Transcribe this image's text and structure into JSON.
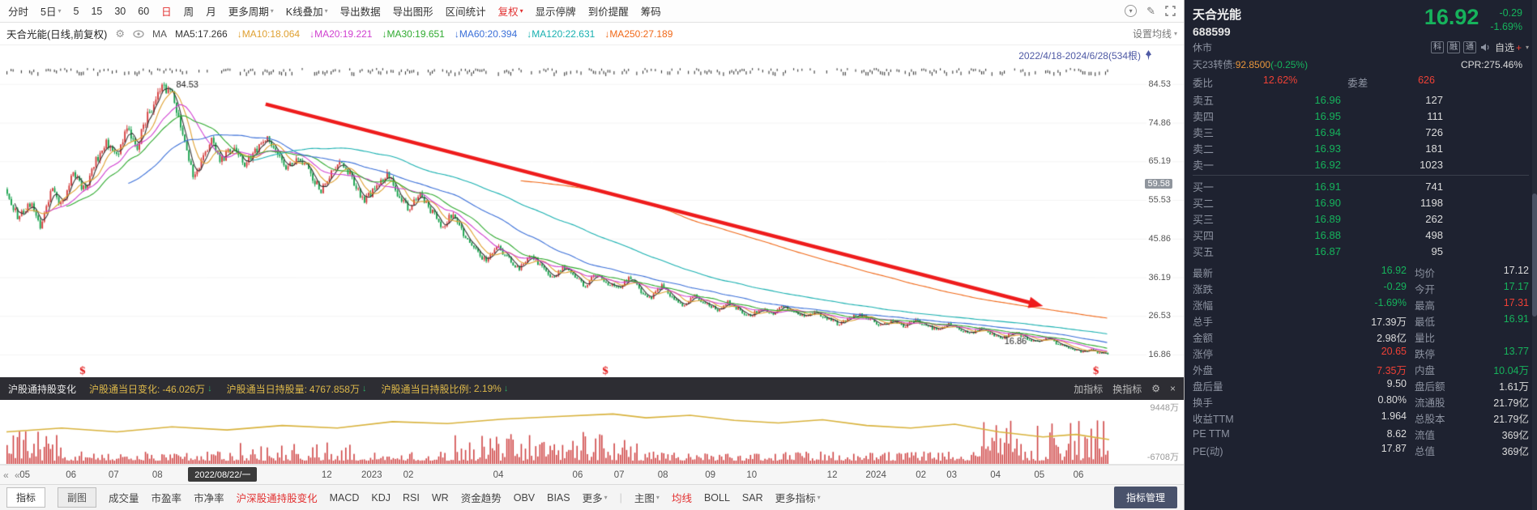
{
  "icons": {
    "caret": "▾",
    "down_arrow": "↓",
    "gear": "⚙",
    "edit": "✎",
    "close": "×",
    "back": "« «",
    "plus": "+",
    "event_marker": "$",
    "collapse": "▾"
  },
  "top_toolbar": {
    "items": [
      {
        "label": "分时"
      },
      {
        "label": "5日",
        "caret": true
      },
      {
        "label": "5"
      },
      {
        "label": "15"
      },
      {
        "label": "30"
      },
      {
        "label": "60"
      },
      {
        "label": "日",
        "active": true
      },
      {
        "label": "周"
      },
      {
        "label": "月"
      },
      {
        "label": "更多周期",
        "caret": true
      },
      {
        "label": "K线叠加",
        "caret": true
      },
      {
        "label": "导出数据"
      },
      {
        "label": "导出图形"
      },
      {
        "label": "区间统计"
      },
      {
        "label": "复权",
        "caret": true,
        "active": true
      },
      {
        "label": "显示停牌"
      },
      {
        "label": "到价提醒"
      },
      {
        "label": "筹码"
      }
    ]
  },
  "ma_bar": {
    "title": "天合光能(日线,前复权)",
    "ma_label": "MA",
    "items": [
      {
        "text": "MA5:17.266",
        "color": "#333333",
        "arrow": ""
      },
      {
        "text": "MA10:18.064",
        "color": "#dfa030",
        "arrow": "↓"
      },
      {
        "text": "MA20:19.221",
        "color": "#d040d0",
        "arrow": "↓"
      },
      {
        "text": "MA30:19.651",
        "color": "#2faa2f",
        "arrow": "↓"
      },
      {
        "text": "MA60:20.394",
        "color": "#3a6fd8",
        "arrow": "↓"
      },
      {
        "text": "MA120:22.631",
        "color": "#18b0b0",
        "arrow": "↓"
      },
      {
        "text": "MA250:27.189",
        "color": "#f06818",
        "arrow": "↓"
      }
    ],
    "settings": "设置均线"
  },
  "chart_overlay": {
    "range_label": "2022/4/18-2024/6/28(534根)"
  },
  "chart_data": [
    {
      "type": "candlestick",
      "title": "天合光能 日线 前复权",
      "date_range": "2022/4/18-2024/6/28",
      "bar_count": 534,
      "y_range": [
        11.2,
        94.2
      ],
      "y_ticks": [
        84.53,
        74.86,
        65.19,
        55.53,
        45.86,
        36.19,
        26.53,
        16.86
      ],
      "y_badge": 59.58,
      "up_color": "#d43c3c",
      "down_color": "#15a04a",
      "ma_periods": [
        5,
        10,
        20,
        30,
        60,
        120,
        250
      ],
      "ma_colors": [
        "#333333",
        "#dfa030",
        "#d040d0",
        "#2faa2f",
        "#3a6fd8",
        "#18b0b0",
        "#f06818"
      ],
      "peak_annotation": {
        "text": "84.53",
        "x": 0.148,
        "price": 84.53
      },
      "last_annotation": {
        "text": "16.86",
        "x": 0.905,
        "price": 19.6
      },
      "trend_arrow": {
        "x1": 0.235,
        "price1": 79.5,
        "x2": 0.94,
        "price2": 29.0,
        "color": "#ee1c1c"
      },
      "event_marker_xs": [
        0.066,
        0.54,
        0.985
      ],
      "close_anchors": [
        [
          0.0,
          57
        ],
        [
          0.01,
          51
        ],
        [
          0.022,
          55
        ],
        [
          0.03,
          49
        ],
        [
          0.04,
          58
        ],
        [
          0.05,
          54
        ],
        [
          0.06,
          62
        ],
        [
          0.07,
          58
        ],
        [
          0.08,
          65
        ],
        [
          0.09,
          70
        ],
        [
          0.1,
          66
        ],
        [
          0.108,
          73
        ],
        [
          0.118,
          69
        ],
        [
          0.128,
          77
        ],
        [
          0.14,
          83
        ],
        [
          0.148,
          84.3
        ],
        [
          0.155,
          76
        ],
        [
          0.163,
          68
        ],
        [
          0.17,
          61
        ],
        [
          0.178,
          66
        ],
        [
          0.186,
          71
        ],
        [
          0.194,
          65
        ],
        [
          0.205,
          69
        ],
        [
          0.215,
          64
        ],
        [
          0.225,
          68
        ],
        [
          0.235,
          71
        ],
        [
          0.245,
          67
        ],
        [
          0.255,
          63
        ],
        [
          0.265,
          67
        ],
        [
          0.275,
          62
        ],
        [
          0.285,
          58
        ],
        [
          0.295,
          62
        ],
        [
          0.305,
          65
        ],
        [
          0.315,
          60
        ],
        [
          0.325,
          55
        ],
        [
          0.335,
          59
        ],
        [
          0.345,
          62
        ],
        [
          0.355,
          57
        ],
        [
          0.365,
          53
        ],
        [
          0.375,
          57
        ],
        [
          0.385,
          53
        ],
        [
          0.395,
          49
        ],
        [
          0.405,
          52
        ],
        [
          0.415,
          47
        ],
        [
          0.425,
          43
        ],
        [
          0.435,
          40
        ],
        [
          0.445,
          44
        ],
        [
          0.455,
          41
        ],
        [
          0.465,
          38
        ],
        [
          0.475,
          42
        ],
        [
          0.485,
          39
        ],
        [
          0.495,
          36
        ],
        [
          0.505,
          39
        ],
        [
          0.515,
          37
        ],
        [
          0.525,
          34
        ],
        [
          0.535,
          37
        ],
        [
          0.545,
          35
        ],
        [
          0.555,
          33
        ],
        [
          0.565,
          36
        ],
        [
          0.575,
          33
        ],
        [
          0.585,
          31
        ],
        [
          0.595,
          34
        ],
        [
          0.605,
          31
        ],
        [
          0.615,
          29
        ],
        [
          0.625,
          31.5
        ],
        [
          0.635,
          29.5
        ],
        [
          0.645,
          28
        ],
        [
          0.655,
          30
        ],
        [
          0.665,
          28
        ],
        [
          0.675,
          26.5
        ],
        [
          0.685,
          28.5
        ],
        [
          0.695,
          27
        ],
        [
          0.705,
          29
        ],
        [
          0.715,
          27.5
        ],
        [
          0.725,
          26
        ],
        [
          0.735,
          27.5
        ],
        [
          0.745,
          26
        ],
        [
          0.755,
          24.5
        ],
        [
          0.765,
          26
        ],
        [
          0.775,
          27
        ],
        [
          0.785,
          25.5
        ],
        [
          0.795,
          24
        ],
        [
          0.805,
          25.5
        ],
        [
          0.815,
          24
        ],
        [
          0.825,
          25.5
        ],
        [
          0.835,
          24
        ],
        [
          0.845,
          23
        ],
        [
          0.855,
          24.5
        ],
        [
          0.865,
          23
        ],
        [
          0.875,
          22
        ],
        [
          0.885,
          23.5
        ],
        [
          0.895,
          22
        ],
        [
          0.905,
          21
        ],
        [
          0.915,
          22.5
        ],
        [
          0.925,
          21
        ],
        [
          0.935,
          20
        ],
        [
          0.945,
          21
        ],
        [
          0.955,
          19.5
        ],
        [
          0.965,
          18.5
        ],
        [
          0.975,
          17.5
        ],
        [
          0.985,
          18.2
        ],
        [
          0.993,
          17.2
        ],
        [
          1.0,
          16.92
        ]
      ]
    },
    {
      "type": "bar+line",
      "title": "沪深股通持股变化",
      "y_top_label": "9448万",
      "y_bottom_label": "-6708万",
      "latest": {
        "change": "-46.026万",
        "holdings": "4767.858万",
        "ratio": "2.19%"
      },
      "bar_color": "#cf4545",
      "line_color": "#d8b23c",
      "line_points": [
        [
          0,
          0.5
        ],
        [
          0.05,
          0.44
        ],
        [
          0.1,
          0.5
        ],
        [
          0.15,
          0.42
        ],
        [
          0.2,
          0.47
        ],
        [
          0.25,
          0.4
        ],
        [
          0.3,
          0.44
        ],
        [
          0.35,
          0.34
        ],
        [
          0.4,
          0.37
        ],
        [
          0.45,
          0.3
        ],
        [
          0.5,
          0.26
        ],
        [
          0.55,
          0.22
        ],
        [
          0.58,
          0.28
        ],
        [
          0.62,
          0.24
        ],
        [
          0.66,
          0.32
        ],
        [
          0.7,
          0.36
        ],
        [
          0.74,
          0.31
        ],
        [
          0.78,
          0.4
        ],
        [
          0.82,
          0.44
        ],
        [
          0.86,
          0.38
        ],
        [
          0.9,
          0.5
        ],
        [
          0.94,
          0.58
        ],
        [
          0.97,
          0.54
        ],
        [
          1.0,
          0.62
        ]
      ]
    }
  ],
  "hgt_header": {
    "title": "沪股通持股变化",
    "stats": [
      {
        "label": "沪股通当日变化:",
        "value": "-46.026万"
      },
      {
        "label": "沪股通当日持股量:",
        "value": "4767.858万"
      },
      {
        "label": "沪股通当日持股比例:",
        "value": "2.19%"
      }
    ],
    "actions": [
      "加指标",
      "换指标"
    ]
  },
  "x_axis": {
    "ticks": [
      {
        "label": "05",
        "x": 0.021
      },
      {
        "label": "06",
        "x": 0.06
      },
      {
        "label": "07",
        "x": 0.096
      },
      {
        "label": "08",
        "x": 0.133
      },
      {
        "label": "12",
        "x": 0.276
      },
      {
        "label": "2023",
        "x": 0.314
      },
      {
        "label": "02",
        "x": 0.345
      },
      {
        "label": "04",
        "x": 0.421
      },
      {
        "label": "06",
        "x": 0.488
      },
      {
        "label": "07",
        "x": 0.523
      },
      {
        "label": "08",
        "x": 0.56
      },
      {
        "label": "09",
        "x": 0.6
      },
      {
        "label": "10",
        "x": 0.635
      },
      {
        "label": "12",
        "x": 0.703
      },
      {
        "label": "2024",
        "x": 0.74
      },
      {
        "label": "02",
        "x": 0.778
      },
      {
        "label": "03",
        "x": 0.804
      },
      {
        "label": "04",
        "x": 0.841
      },
      {
        "label": "05",
        "x": 0.878
      },
      {
        "label": "06",
        "x": 0.911
      }
    ],
    "tooltip": {
      "label": "2022/08/22/一",
      "x": 0.159
    }
  },
  "bottom_toolbar": {
    "tabs": [
      "指标",
      "副图"
    ],
    "indicators": [
      {
        "label": "成交量"
      },
      {
        "label": "市盈率"
      },
      {
        "label": "市净率"
      },
      {
        "label": "沪深股通持股变化",
        "active": true
      },
      {
        "label": "MACD"
      },
      {
        "label": "KDJ"
      },
      {
        "label": "RSI"
      },
      {
        "label": "WR"
      },
      {
        "label": "资金趋势"
      },
      {
        "label": "OBV"
      },
      {
        "label": "BIAS"
      },
      {
        "label": "更多",
        "caret": true
      }
    ],
    "main_group": [
      {
        "label": "主图",
        "caret": true
      },
      {
        "label": "均线",
        "active": true
      },
      {
        "label": "BOLL"
      },
      {
        "label": "SAR"
      },
      {
        "label": "更多指标",
        "caret": true
      }
    ],
    "manage_button": "指标管理"
  },
  "quote_panel": {
    "name": "天合光能",
    "code": "688599",
    "price": "16.92",
    "change": "-0.29",
    "change_pct": "-1.69%",
    "market_status": "休市",
    "badges": [
      "科",
      "融",
      "通"
    ],
    "watchlist": "自选",
    "bond": {
      "label": "天23转债:",
      "price": "92.8500",
      "change": "(-0.25%)"
    },
    "cpr": "CPR:275.46%",
    "weibi": {
      "label": "委比",
      "value": "12.62%",
      "diff_label": "委差",
      "diff_value": "626"
    },
    "asks": [
      {
        "label": "卖五",
        "price": "16.96",
        "vol": "127"
      },
      {
        "label": "卖四",
        "price": "16.95",
        "vol": "111"
      },
      {
        "label": "卖三",
        "price": "16.94",
        "vol": "726"
      },
      {
        "label": "卖二",
        "price": "16.93",
        "vol": "181"
      },
      {
        "label": "卖一",
        "price": "16.92",
        "vol": "1023"
      }
    ],
    "bids": [
      {
        "label": "买一",
        "price": "16.91",
        "vol": "741"
      },
      {
        "label": "买二",
        "price": "16.90",
        "vol": "1198"
      },
      {
        "label": "买三",
        "price": "16.89",
        "vol": "262"
      },
      {
        "label": "买四",
        "price": "16.88",
        "vol": "498"
      },
      {
        "label": "买五",
        "price": "16.87",
        "vol": "95"
      }
    ],
    "stats": [
      [
        {
          "label": "最新",
          "value": "16.92",
          "c": "g"
        },
        {
          "label": "均价",
          "value": "17.12",
          "c": "w"
        }
      ],
      [
        {
          "label": "涨跌",
          "value": "-0.29",
          "c": "g"
        },
        {
          "label": "今开",
          "value": "17.17",
          "c": "g"
        }
      ],
      [
        {
          "label": "涨幅",
          "value": "-1.69%",
          "c": "g"
        },
        {
          "label": "最高",
          "value": "17.31",
          "c": "r"
        }
      ],
      [
        {
          "label": "总手",
          "value": "17.39万",
          "c": "w"
        },
        {
          "label": "最低",
          "value": "16.91",
          "c": "g"
        }
      ],
      [
        {
          "label": "金额",
          "value": "2.98亿",
          "c": "w"
        },
        {
          "label": "量比",
          "value": "",
          "c": "w"
        }
      ],
      [
        {
          "label": "涨停",
          "value": "20.65",
          "c": "r"
        },
        {
          "label": "跌停",
          "value": "13.77",
          "c": "g"
        }
      ],
      [
        {
          "label": "外盘",
          "value": "7.35万",
          "c": "r"
        },
        {
          "label": "内盘",
          "value": "10.04万",
          "c": "g"
        }
      ],
      [
        {
          "label": "盘后量",
          "value": "9.50",
          "c": "w"
        },
        {
          "label": "盘后额",
          "value": "1.61万",
          "c": "w"
        }
      ],
      [
        {
          "label": "换手",
          "value": "0.80%",
          "c": "w"
        },
        {
          "label": "流通股",
          "value": "21.79亿",
          "c": "w"
        }
      ],
      [
        {
          "label": "收益TTM",
          "value": "1.964",
          "c": "w"
        },
        {
          "label": "总股本",
          "value": "21.79亿",
          "c": "w"
        }
      ],
      [
        {
          "label": "PE TTM",
          "value": "8.62",
          "c": "w"
        },
        {
          "label": "流值",
          "value": "369亿",
          "c": "w"
        }
      ],
      [
        {
          "label": "PE(动)",
          "value": "17.87",
          "c": "w"
        },
        {
          "label": "总值",
          "value": "369亿",
          "c": "w"
        }
      ]
    ]
  }
}
